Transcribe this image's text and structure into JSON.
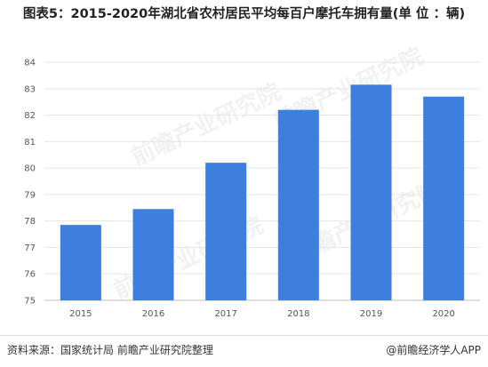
{
  "title": "图表5：2015-2020年湖北省农村居民平均每百户摩托车拥有量(单 位 ：辆)",
  "source": "资料来源：国家统计局 前瞻产业研究院整理",
  "credit": "@前瞻经济学人APP",
  "watermark": "前瞻产业研究院",
  "colors": {
    "bar": "#3d7fdf",
    "grid": "#e6e6e6",
    "axis": "#bfbfbf"
  },
  "chart_data": {
    "type": "bar",
    "categories": [
      "2015",
      "2016",
      "2017",
      "2018",
      "2019",
      "2020"
    ],
    "values": [
      77.85,
      78.45,
      80.2,
      82.2,
      83.15,
      82.7
    ],
    "ylim": [
      75,
      84
    ],
    "yticks": [
      75,
      76,
      77,
      78,
      79,
      80,
      81,
      82,
      83,
      84
    ],
    "grid": true,
    "legend": "none"
  }
}
